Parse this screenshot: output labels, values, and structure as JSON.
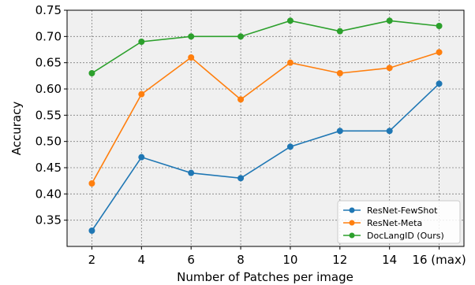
{
  "chart_data": {
    "type": "line",
    "title": "",
    "xlabel": "Number of Patches per image",
    "ylabel": "Accuracy",
    "x": [
      2,
      4,
      6,
      8,
      10,
      12,
      14,
      16
    ],
    "x_tick_labels": [
      "2",
      "4",
      "6",
      "8",
      "10",
      "12",
      "14",
      "16 (max)"
    ],
    "xlim": [
      1,
      17
    ],
    "ylim": [
      0.3,
      0.75
    ],
    "y_ticks": [
      0.35,
      0.4,
      0.45,
      0.5,
      0.55,
      0.6,
      0.65,
      0.7,
      0.75
    ],
    "y_tick_labels": [
      "0.35",
      "0.40",
      "0.45",
      "0.50",
      "0.55",
      "0.60",
      "0.65",
      "0.70",
      "0.75"
    ],
    "grid": true,
    "legend_position": "bottom-right",
    "series": [
      {
        "name": "ResNet-FewShot",
        "color": "#1f77b4",
        "values": [
          0.33,
          0.47,
          0.44,
          0.43,
          0.49,
          0.52,
          0.52,
          0.61
        ]
      },
      {
        "name": "ResNet-Meta",
        "color": "#ff7f0e",
        "values": [
          0.42,
          0.59,
          0.66,
          0.58,
          0.65,
          0.63,
          0.64,
          0.67
        ]
      },
      {
        "name": "DocLangID (Ours)",
        "color": "#2ca02c",
        "values": [
          0.63,
          0.69,
          0.7,
          0.7,
          0.73,
          0.71,
          0.73,
          0.72
        ]
      }
    ],
    "background_color": "#f0f0f0",
    "grid_color": "#7f7f7f"
  }
}
